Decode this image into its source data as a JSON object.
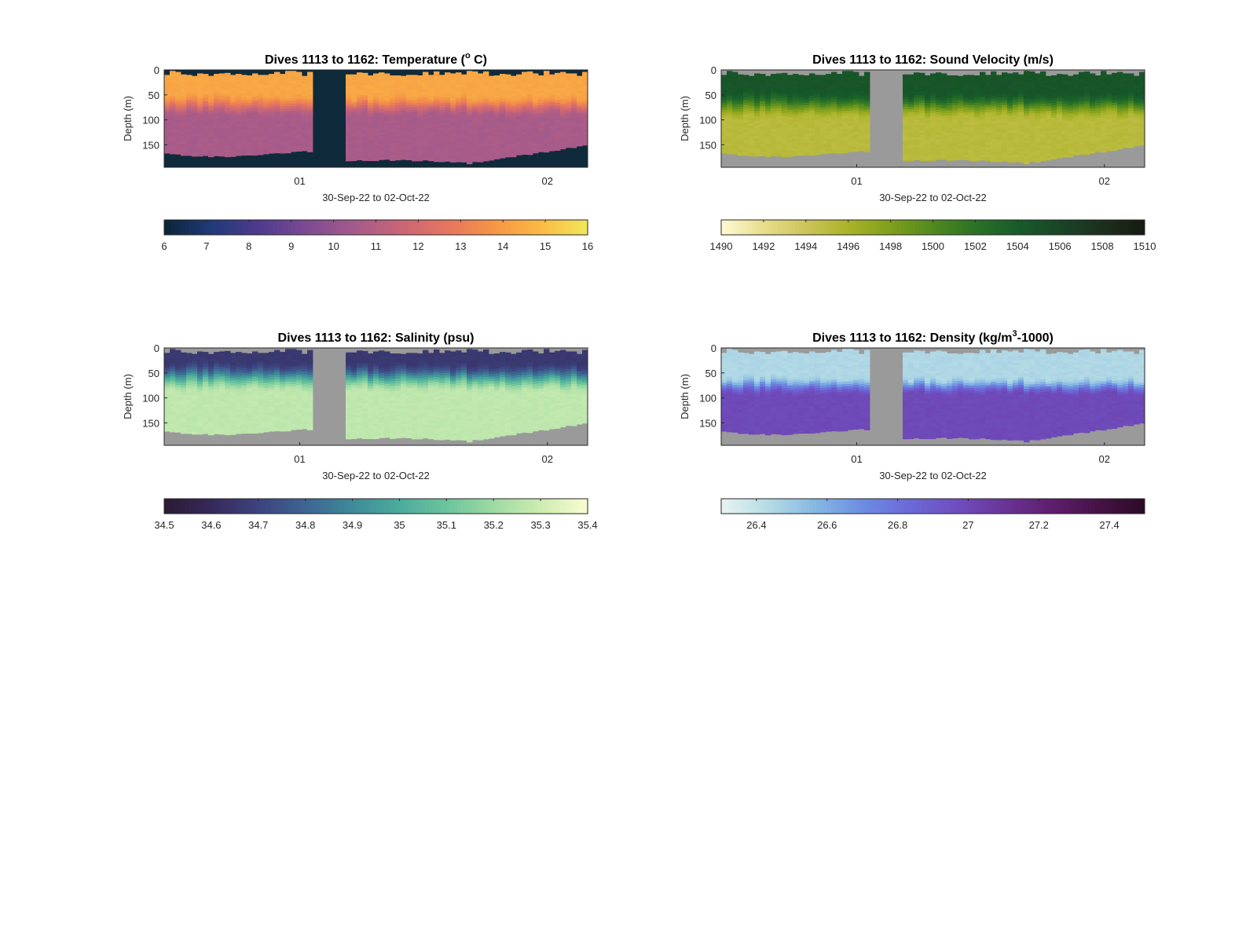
{
  "chart_data": [
    {
      "type": "heatmap",
      "title_main": "Dives 1113 to 1162: Temperature (",
      "title_sup": "o",
      "title_tail": " C)",
      "variable": "Temperature",
      "ylabel": "Depth (m)",
      "xlabel": "30-Sep-22 to 02-Oct-22",
      "ylim": [
        0,
        195
      ],
      "y_ticks": [
        "0",
        "50",
        "100",
        "150"
      ],
      "y_tick_values": [
        0,
        50,
        100,
        150
      ],
      "x_tick_labels": [
        "01",
        "02"
      ],
      "x_tick_values": [
        0.32,
        0.905
      ],
      "background_color": "#0f2a3a",
      "colorbar": {
        "min": 6,
        "max": 16,
        "ticks": [
          "6",
          "7",
          "8",
          "9",
          "10",
          "11",
          "12",
          "13",
          "14",
          "15",
          "16"
        ],
        "tick_values": [
          6,
          7,
          8,
          9,
          10,
          11,
          12,
          13,
          14,
          15,
          16
        ],
        "colors": [
          "#0b2438",
          "#203a78",
          "#4e3a8e",
          "#7c4a92",
          "#a35a8c",
          "#c96577",
          "#e47660",
          "#f59546",
          "#fbba45",
          "#f1e85b"
        ]
      },
      "profile": {
        "surface": 14.3,
        "thermocline_top": 45,
        "thermocline_bottom": 95,
        "deep": 10.6
      }
    },
    {
      "type": "heatmap",
      "title_main": "Dives 1113 to 1162: Sound Velocity (m/s)",
      "title_sup": "",
      "title_tail": "",
      "variable": "Sound Velocity",
      "ylabel": "Depth (m)",
      "xlabel": "30-Sep-22 to 02-Oct-22",
      "ylim": [
        0,
        195
      ],
      "y_ticks": [
        "0",
        "50",
        "100",
        "150"
      ],
      "y_tick_values": [
        0,
        50,
        100,
        150
      ],
      "x_tick_labels": [
        "01",
        "02"
      ],
      "x_tick_values": [
        0.32,
        0.905
      ],
      "background_color": "#9a9a9a",
      "colorbar": {
        "min": 1490,
        "max": 1510,
        "ticks": [
          "1490",
          "1492",
          "1494",
          "1496",
          "1498",
          "1500",
          "1502",
          "1504",
          "1506",
          "1508",
          "1510"
        ],
        "tick_values": [
          1490,
          1492,
          1494,
          1496,
          1498,
          1500,
          1502,
          1504,
          1506,
          1508,
          1510
        ],
        "colors": [
          "#fefbd4",
          "#e7dd8d",
          "#cdc45a",
          "#aab328",
          "#7f9f1c",
          "#52891f",
          "#2a7226",
          "#175c2a",
          "#1a4527",
          "#1d2f1d",
          "#171a12"
        ]
      },
      "profile": {
        "surface": 1504.6,
        "thermocline_top": 40,
        "thermocline_bottom": 100,
        "deep": 1495.2
      }
    },
    {
      "type": "heatmap",
      "title_main": "Dives 1113 to 1162: Salinity (psu)",
      "title_sup": "",
      "title_tail": "",
      "variable": "Salinity",
      "ylabel": "Depth (m)",
      "xlabel": "30-Sep-22 to 02-Oct-22",
      "ylim": [
        0,
        195
      ],
      "y_ticks": [
        "0",
        "50",
        "100",
        "150"
      ],
      "y_tick_values": [
        0,
        50,
        100,
        150
      ],
      "x_tick_labels": [
        "01",
        "02"
      ],
      "x_tick_values": [
        0.32,
        0.905
      ],
      "background_color": "#9a9a9a",
      "colorbar": {
        "min": 34.5,
        "max": 35.4,
        "ticks": [
          "34.5",
          "34.6",
          "34.7",
          "34.8",
          "34.9",
          "35",
          "35.1",
          "35.2",
          "35.3",
          "35.4"
        ],
        "tick_values": [
          34.5,
          34.6,
          34.7,
          34.8,
          34.9,
          35.0,
          35.1,
          35.2,
          35.3,
          35.4
        ],
        "colors": [
          "#2a1c33",
          "#37295a",
          "#3c437f",
          "#3e6592",
          "#3f8a99",
          "#4cab9c",
          "#6cc49c",
          "#9edaa3",
          "#cdecb2",
          "#fafcd0"
        ]
      },
      "profile": {
        "surface": 34.66,
        "thermocline_top": 25,
        "thermocline_bottom": 90,
        "deep": 35.27
      }
    },
    {
      "type": "heatmap",
      "title_main": "Dives 1113 to 1162: Density (kg/m",
      "title_sup": "3",
      "title_tail": "-1000)",
      "variable": "Density",
      "ylabel": "Depth (m)",
      "xlabel": "30-Sep-22 to 02-Oct-22",
      "ylim": [
        0,
        195
      ],
      "y_ticks": [
        "0",
        "50",
        "100",
        "150"
      ],
      "y_tick_values": [
        0,
        50,
        100,
        150
      ],
      "x_tick_labels": [
        "01",
        "02"
      ],
      "x_tick_values": [
        0.32,
        0.905
      ],
      "background_color": "#9a9a9a",
      "colorbar": {
        "min": 26.3,
        "max": 27.5,
        "ticks": [
          "26.4",
          "26.6",
          "26.8",
          "27",
          "27.2",
          "27.4"
        ],
        "tick_values": [
          26.4,
          26.6,
          26.8,
          27.0,
          27.2,
          27.4
        ],
        "colors": [
          "#e8f3f1",
          "#b5dbe5",
          "#85b8e2",
          "#6c8de2",
          "#6c69d8",
          "#6f4ebf",
          "#6a3598",
          "#5e1f6e",
          "#471347",
          "#2c0a25"
        ]
      },
      "profile": {
        "surface": 26.45,
        "thermocline_top": 55,
        "thermocline_bottom": 95,
        "deep": 26.99
      }
    }
  ]
}
